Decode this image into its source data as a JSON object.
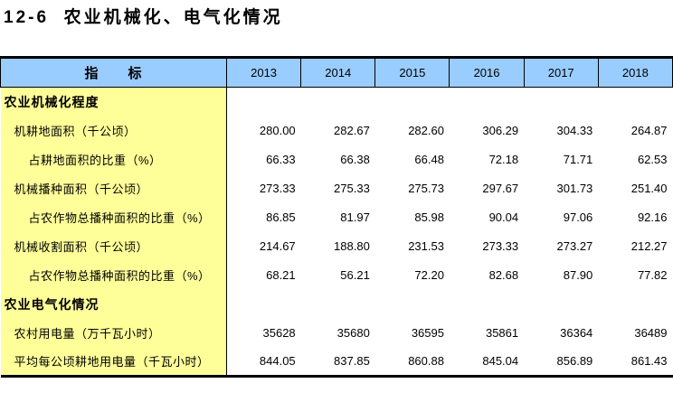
{
  "page": {
    "title": "12-6  农业机械化、电气化情况"
  },
  "colors": {
    "header_bg": "#99CCFF",
    "label_bg": "#FFFF99",
    "border": "#000000",
    "page_bg": "#FFFFFF"
  },
  "table": {
    "indicator_header": "指　　标",
    "years": [
      "2013",
      "2014",
      "2015",
      "2016",
      "2017",
      "2018"
    ],
    "rows": [
      {
        "label": "农业机械化程度",
        "level": "section",
        "values": [
          "",
          "",
          "",
          "",
          "",
          ""
        ]
      },
      {
        "label": "机耕地面积（千公顷）",
        "level": "item",
        "values": [
          "280.00",
          "282.67",
          "282.60",
          "306.29",
          "304.33",
          "264.87"
        ]
      },
      {
        "label": "占耕地面积的比重（%）",
        "level": "sub",
        "values": [
          "66.33",
          "66.38",
          "66.48",
          "72.18",
          "71.71",
          "62.53"
        ]
      },
      {
        "label": "机械播种面积（千公顷）",
        "level": "item",
        "values": [
          "273.33",
          "275.33",
          "275.73",
          "297.67",
          "301.73",
          "251.40"
        ]
      },
      {
        "label": "占农作物总播种面积的比重（%）",
        "level": "sub",
        "values": [
          "86.85",
          "81.97",
          "85.98",
          "90.04",
          "97.06",
          "92.16"
        ]
      },
      {
        "label": "机械收割面积（千公顷）",
        "level": "item",
        "values": [
          "214.67",
          "188.80",
          "231.53",
          "273.33",
          "273.27",
          "212.27"
        ]
      },
      {
        "label": "占农作物总播种面积的比重（%）",
        "level": "sub",
        "values": [
          "68.21",
          "56.21",
          "72.20",
          "82.68",
          "87.90",
          "77.82"
        ]
      },
      {
        "label": "农业电气化情况",
        "level": "section",
        "values": [
          "",
          "",
          "",
          "",
          "",
          ""
        ]
      },
      {
        "label": "农村用电量（万千瓦小时）",
        "level": "item",
        "values": [
          "35628",
          "35680",
          "36595",
          "35861",
          "36364",
          "36489"
        ]
      },
      {
        "label": "平均每公顷耕地用电量（千瓦小时）",
        "level": "item",
        "values": [
          "844.05",
          "837.85",
          "860.88",
          "845.04",
          "856.89",
          "861.43"
        ]
      }
    ]
  }
}
